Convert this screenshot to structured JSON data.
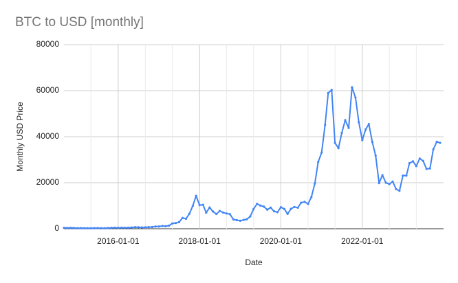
{
  "chart_data": {
    "type": "line",
    "title": "BTC to USD [monthly]",
    "x_label": "Date",
    "y_label": "Monthly USD Price",
    "x": [
      "2014-09-01",
      "2014-10-01",
      "2014-11-01",
      "2014-12-01",
      "2015-01-01",
      "2015-02-01",
      "2015-03-01",
      "2015-04-01",
      "2015-05-01",
      "2015-06-01",
      "2015-07-01",
      "2015-08-01",
      "2015-09-01",
      "2015-10-01",
      "2015-11-01",
      "2015-12-01",
      "2016-01-01",
      "2016-02-01",
      "2016-03-01",
      "2016-04-01",
      "2016-05-01",
      "2016-06-01",
      "2016-07-01",
      "2016-08-01",
      "2016-09-01",
      "2016-10-01",
      "2016-11-01",
      "2016-12-01",
      "2017-01-01",
      "2017-02-01",
      "2017-03-01",
      "2017-04-01",
      "2017-05-01",
      "2017-06-01",
      "2017-07-01",
      "2017-08-01",
      "2017-09-01",
      "2017-10-01",
      "2017-11-01",
      "2017-12-01",
      "2018-01-01",
      "2018-02-01",
      "2018-03-01",
      "2018-04-01",
      "2018-05-01",
      "2018-06-01",
      "2018-07-01",
      "2018-08-01",
      "2018-09-01",
      "2018-10-01",
      "2018-11-01",
      "2018-12-01",
      "2019-01-01",
      "2019-02-01",
      "2019-03-01",
      "2019-04-01",
      "2019-05-01",
      "2019-06-01",
      "2019-07-01",
      "2019-08-01",
      "2019-09-01",
      "2019-10-01",
      "2019-11-01",
      "2019-12-01",
      "2020-01-01",
      "2020-02-01",
      "2020-03-01",
      "2020-04-01",
      "2020-05-01",
      "2020-06-01",
      "2020-07-01",
      "2020-08-01",
      "2020-09-01",
      "2020-10-01",
      "2020-11-01",
      "2020-12-01",
      "2021-01-01",
      "2021-02-01",
      "2021-03-01",
      "2021-04-01",
      "2021-05-01",
      "2021-06-01",
      "2021-07-01",
      "2021-08-01",
      "2021-09-01",
      "2021-10-01",
      "2021-11-01",
      "2021-12-01",
      "2022-01-01",
      "2022-02-01",
      "2022-03-01",
      "2022-04-01",
      "2022-05-01",
      "2022-06-01",
      "2022-07-01",
      "2022-08-01",
      "2022-09-01",
      "2022-10-01",
      "2022-11-01",
      "2022-12-01",
      "2023-01-01",
      "2023-02-01",
      "2023-03-01",
      "2023-04-01",
      "2023-05-01",
      "2023-06-01",
      "2023-07-01",
      "2023-08-01",
      "2023-09-01",
      "2023-10-01",
      "2023-11-01",
      "2023-12-01"
    ],
    "series": [
      {
        "name": "Monthly USD Price",
        "color": "#4285f4",
        "values": [
          386,
          338,
          378,
          320,
          217,
          254,
          244,
          236,
          230,
          263,
          284,
          230,
          236,
          314,
          377,
          430,
          368,
          437,
          416,
          448,
          531,
          673,
          624,
          575,
          609,
          698,
          742,
          964,
          970,
          1190,
          1080,
          1350,
          2290,
          2480,
          2880,
          4700,
          4340,
          6470,
          9950,
          14300,
          10220,
          10400,
          6970,
          9240,
          7490,
          6400,
          7730,
          7040,
          6630,
          6320,
          4020,
          3740,
          3460,
          3850,
          4110,
          5350,
          8570,
          10820,
          10080,
          9630,
          8290,
          9200,
          7570,
          7190,
          9350,
          8600,
          6440,
          8660,
          9460,
          9140,
          11320,
          11680,
          10780,
          13780,
          19630,
          29000,
          33100,
          45100,
          59000,
          60300,
          37300,
          35000,
          41600,
          47200,
          43800,
          61500,
          57000,
          46300,
          38500,
          43200,
          45500,
          37700,
          31800,
          19800,
          23300,
          20000,
          19400,
          20500,
          17200,
          16500,
          23100,
          23100,
          28500,
          29300,
          27200,
          30500,
          29500,
          26000,
          26200,
          34500,
          37800,
          37300
        ]
      }
    ],
    "xlim": [
      "2014-09-01",
      "2024-01-01"
    ],
    "xticks": [
      "2016-01-01",
      "2018-01-01",
      "2020-01-01",
      "2022-01-01"
    ],
    "x_minor_grid": [
      "2015-05-01",
      "2016-09-01",
      "2017-05-01",
      "2018-09-01",
      "2019-05-01",
      "2020-09-01",
      "2021-05-01",
      "2022-09-01",
      "2023-05-01"
    ],
    "ylim": [
      0,
      80000
    ],
    "yticks": [
      0,
      20000,
      40000,
      60000,
      80000
    ],
    "grid": true
  }
}
